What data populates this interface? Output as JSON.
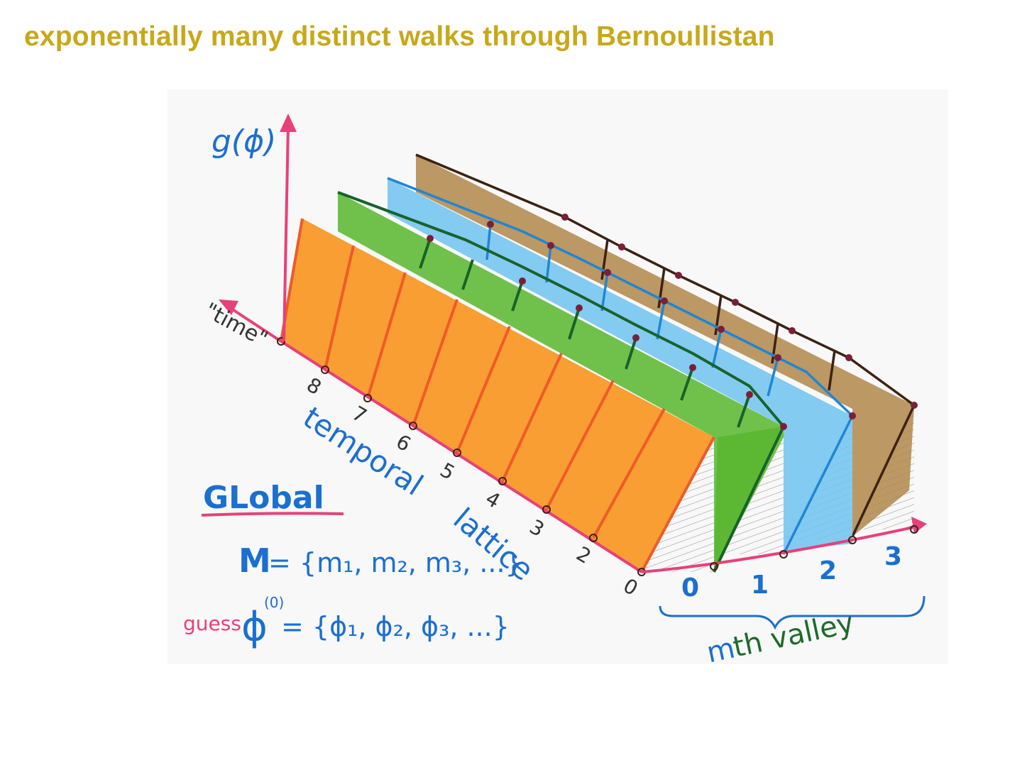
{
  "title": "exponentially many distinct walks through Bernoullistan",
  "colors": {
    "title": "#c8a81a",
    "orange": "#f7941d",
    "orange_line": "#f05a28",
    "green": "#5cb832",
    "green_line": "#17632a",
    "blue": "#6ec3ee",
    "blue_line": "#1f86d6",
    "brown": "#b0874a",
    "brown_line": "#3b2212",
    "axis_pink": "#e8407a",
    "text_blue": "#1a6fd1",
    "text_dark_green": "#1d6b2a"
  },
  "drawing": {
    "y_axis_label": "g(ϕ)",
    "time_axis_label": "\"time\"",
    "time_ticks": [
      "0",
      "2",
      "3",
      "4",
      "5",
      "6",
      "7",
      "8"
    ],
    "lattice_label_1": "temporal",
    "lattice_label_2": "lattice",
    "valley_ticks": [
      "0",
      "1",
      "2",
      "3"
    ],
    "valley_label_prefix": "m",
    "valley_label_suffix": "th valley",
    "global_label": "GLobal",
    "m_set_lhs": "M",
    "m_set_rhs": "= {m₁, m₂, m₃, ...}",
    "guess_label": "guess",
    "phi_lhs": "ϕ",
    "phi_rhs": "= {ϕ₁, ϕ₂, ϕ₃, ...}",
    "superscript": "(0)"
  }
}
